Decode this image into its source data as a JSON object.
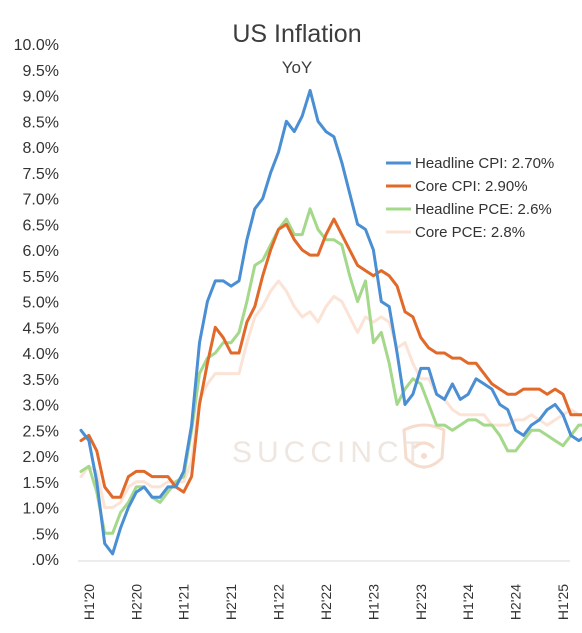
{
  "chart_data": {
    "type": "line",
    "title": "US Inflation",
    "subtitle": "YoY",
    "xlabel": "",
    "ylabel": "",
    "ylim": [
      0,
      10
    ],
    "y_ticks": [
      "10.0%",
      "9.5%",
      "9.0%",
      "8.5%",
      "8.0%",
      "7.5%",
      "7.0%",
      "6.5%",
      "6.0%",
      "5.5%",
      "5.0%",
      "4.5%",
      "4.0%",
      "3.5%",
      "3.0%",
      "2.5%",
      "2.0%",
      "1.5%",
      "1.0%",
      ".5%",
      ".0%"
    ],
    "x_ticks": [
      "H1'20",
      "H2'20",
      "H1'21",
      "H2'21",
      "H1'22",
      "H2'22",
      "H1'23",
      "H2'23",
      "H1'24",
      "H2'24",
      "H1'25"
    ],
    "x_tick_month_index": [
      1,
      7,
      13,
      19,
      25,
      31,
      37,
      43,
      49,
      55,
      61
    ],
    "x_range": [
      0,
      61
    ],
    "grid": false,
    "legend_position": "right",
    "watermark": "SUCCINCT",
    "series": [
      {
        "name": "Headline CPI: 2.70%",
        "color": "#4a8ed4",
        "values": [
          2.5,
          2.3,
          1.5,
          0.3,
          0.1,
          0.6,
          1.0,
          1.3,
          1.4,
          1.2,
          1.2,
          1.4,
          1.4,
          1.7,
          2.6,
          4.2,
          5.0,
          5.4,
          5.4,
          5.3,
          5.4,
          6.2,
          6.8,
          7.0,
          7.5,
          7.9,
          8.5,
          8.3,
          8.6,
          9.1,
          8.5,
          8.3,
          8.2,
          7.7,
          7.1,
          6.5,
          6.4,
          6.0,
          5.0,
          4.9,
          4.0,
          3.0,
          3.2,
          3.7,
          3.7,
          3.2,
          3.1,
          3.4,
          3.1,
          3.2,
          3.5,
          3.4,
          3.3,
          3.0,
          2.9,
          2.5,
          2.4,
          2.6,
          2.7,
          2.9,
          3.0,
          2.8,
          2.4,
          2.3,
          2.4,
          2.7
        ]
      },
      {
        "name": "Core CPI: 2.90%",
        "color": "#e1692a",
        "values": [
          2.3,
          2.4,
          2.1,
          1.4,
          1.2,
          1.2,
          1.6,
          1.7,
          1.7,
          1.6,
          1.6,
          1.6,
          1.4,
          1.3,
          1.6,
          3.0,
          3.8,
          4.5,
          4.3,
          4.0,
          4.0,
          4.6,
          4.9,
          5.5,
          6.0,
          6.4,
          6.5,
          6.2,
          6.0,
          5.9,
          5.9,
          6.3,
          6.6,
          6.3,
          6.0,
          5.7,
          5.6,
          5.5,
          5.6,
          5.5,
          5.3,
          4.8,
          4.7,
          4.3,
          4.1,
          4.0,
          4.0,
          3.9,
          3.9,
          3.8,
          3.8,
          3.6,
          3.4,
          3.3,
          3.2,
          3.2,
          3.3,
          3.3,
          3.3,
          3.2,
          3.3,
          3.2,
          2.8,
          2.8,
          2.8,
          2.9
        ]
      },
      {
        "name": "Headline PCE: 2.6%",
        "color": "#a4d88a",
        "values": [
          1.7,
          1.8,
          1.3,
          0.5,
          0.5,
          0.9,
          1.1,
          1.4,
          1.4,
          1.2,
          1.1,
          1.3,
          1.5,
          1.6,
          2.5,
          3.6,
          3.9,
          4.0,
          4.2,
          4.2,
          4.4,
          5.0,
          5.7,
          5.8,
          6.1,
          6.4,
          6.6,
          6.3,
          6.3,
          6.8,
          6.4,
          6.2,
          6.2,
          6.1,
          5.5,
          5.0,
          5.4,
          4.2,
          4.4,
          3.8,
          3.0,
          3.3,
          3.5,
          3.4,
          3.0,
          2.6,
          2.6,
          2.5,
          2.6,
          2.7,
          2.7,
          2.6,
          2.6,
          2.4,
          2.1,
          2.1,
          2.3,
          2.5,
          2.5,
          2.4,
          2.3,
          2.2,
          2.4,
          2.6,
          2.6
        ]
      },
      {
        "name": "Core PCE: 2.8%",
        "color": "#fbe3d6",
        "values": [
          1.6,
          1.8,
          1.7,
          1.0,
          1.0,
          1.1,
          1.4,
          1.5,
          1.5,
          1.4,
          1.4,
          1.5,
          1.5,
          1.5,
          1.9,
          3.1,
          3.4,
          3.6,
          3.6,
          3.6,
          3.6,
          4.2,
          4.7,
          4.9,
          5.2,
          5.4,
          5.2,
          4.9,
          4.7,
          4.8,
          4.6,
          4.9,
          5.1,
          5.0,
          4.7,
          4.4,
          4.7,
          4.6,
          4.7,
          4.6,
          4.1,
          4.2,
          3.8,
          3.5,
          3.5,
          3.2,
          3.1,
          2.9,
          2.8,
          2.8,
          2.8,
          2.8,
          2.6,
          2.6,
          2.6,
          2.7,
          2.7,
          2.8,
          2.7,
          2.6,
          2.7,
          2.8,
          2.9,
          2.8,
          2.8,
          2.8
        ]
      }
    ]
  }
}
